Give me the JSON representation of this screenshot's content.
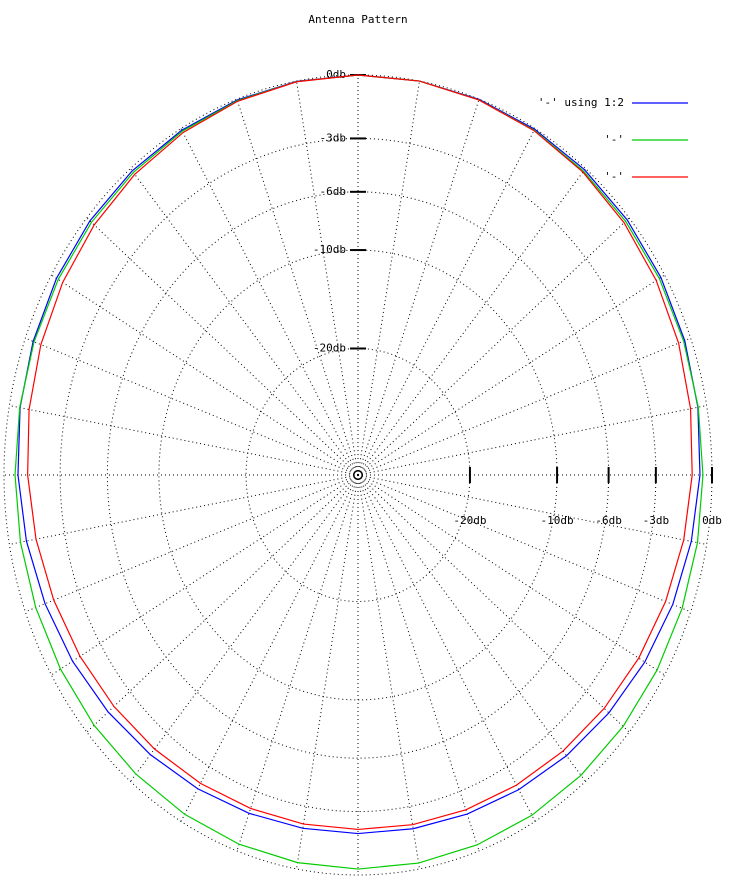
{
  "chart_data": {
    "type": "polar",
    "title": "Antenna Pattern",
    "theta": [
      0,
      10,
      20,
      30,
      40,
      50,
      60,
      70,
      80,
      90,
      100,
      110,
      120,
      130,
      140,
      150,
      160,
      170,
      180,
      190,
      200,
      210,
      220,
      230,
      240,
      250,
      260,
      270,
      280,
      290,
      300,
      310,
      320,
      330,
      340,
      350,
      360
    ],
    "rticks": [
      {
        "value": 0,
        "label": "0db"
      },
      {
        "value": -3,
        "label": "-3db"
      },
      {
        "value": -6,
        "label": "-6db"
      },
      {
        "value": -10,
        "label": "-10db"
      },
      {
        "value": -20,
        "label": "-20db"
      }
    ],
    "grid": true,
    "legend": "top-right",
    "series": [
      {
        "name": "'-' using 1:2",
        "color": "#0000ff",
        "values": [
          -0.6,
          -0.44,
          -0.31,
          -0.21,
          -0.13,
          -0.07,
          -0.03,
          -0.01,
          0.0,
          0.0,
          -0.01,
          -0.04,
          -0.08,
          -0.13,
          -0.2,
          -0.29,
          -0.41,
          -0.54,
          -0.7,
          -0.87,
          -1.06,
          -1.24,
          -1.42,
          -1.59,
          -1.72,
          -1.83,
          -1.89,
          -1.9,
          -1.87,
          -1.79,
          -1.67,
          -1.52,
          -1.35,
          -1.16,
          -0.96,
          -0.78,
          -0.6
        ]
      },
      {
        "name": "'-'",
        "color": "#00cc00",
        "values": [
          -0.45,
          -0.42,
          -0.37,
          -0.3,
          -0.23,
          -0.15,
          -0.08,
          -0.03,
          0.0,
          0.0,
          -0.02,
          -0.07,
          -0.13,
          -0.22,
          -0.3,
          -0.39,
          -0.46,
          -0.52,
          -0.55,
          -0.56,
          -0.55,
          -0.52,
          -0.47,
          -0.42,
          -0.36,
          -0.31,
          -0.28,
          -0.26,
          -0.26,
          -0.28,
          -0.31,
          -0.35,
          -0.39,
          -0.43,
          -0.45,
          -0.46,
          -0.45
        ]
      },
      {
        "name": "'-'",
        "color": "#ff0000",
        "values": [
          -1.0,
          -0.82,
          -0.64,
          -0.48,
          -0.33,
          -0.2,
          -0.1,
          -0.04,
          0.0,
          0.0,
          -0.03,
          -0.1,
          -0.2,
          -0.33,
          -0.48,
          -0.65,
          -0.83,
          -1.01,
          -1.2,
          -1.38,
          -1.55,
          -1.7,
          -1.83,
          -1.94,
          -2.02,
          -2.08,
          -2.1,
          -2.1,
          -2.07,
          -2.01,
          -1.92,
          -1.81,
          -1.68,
          -1.53,
          -1.36,
          -1.18,
          -1.0
        ]
      }
    ]
  }
}
